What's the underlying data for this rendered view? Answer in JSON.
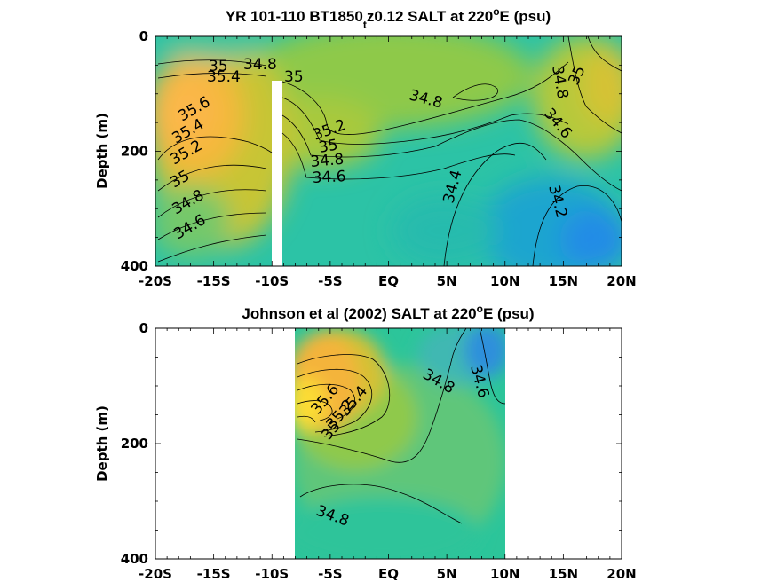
{
  "chart_data": [
    {
      "type": "heatmap",
      "title": {
        "pre": "YR 101-110 BT1850",
        "sub": "t",
        "post": "z0.12 SALT at 220",
        "sup": "o",
        "tail": "E (psu)"
      },
      "ylabel": "Depth (m)",
      "x_ticks": [
        "-20S",
        "-15S",
        "-10S",
        "-5S",
        "EQ",
        "5N",
        "10N",
        "15N",
        "20N"
      ],
      "y_ticks": [
        "0",
        "200",
        "400"
      ],
      "xlim": [
        -20,
        20
      ],
      "ylim": [
        0,
        400
      ],
      "contour_labels": [
        "35",
        "34.8",
        "35.4",
        "35",
        "35.6",
        "35.4",
        "35.2",
        "35",
        "34.8",
        "34.6",
        "35.2",
        "35",
        "34.8",
        "34.6",
        "34.8",
        "34.4",
        "34.8",
        "35",
        "34.6",
        "34.2"
      ]
    },
    {
      "type": "heatmap",
      "title": {
        "pre": "Johnson et al (2002) SALT at 220",
        "sup": "o",
        "tail": "E (psu)"
      },
      "ylabel": "Depth (m)",
      "x_ticks": [
        "-20S",
        "-15S",
        "-10S",
        "-5S",
        "EQ",
        "5N",
        "10N",
        "15N",
        "20N"
      ],
      "y_ticks": [
        "0",
        "200",
        "400"
      ],
      "xlim": [
        -20,
        20
      ],
      "ylim": [
        0,
        400
      ],
      "data_xrange": [
        -8,
        10
      ],
      "contour_labels": [
        "34.8",
        "34.6",
        "35.4",
        "35.2",
        "35",
        "35.6",
        "34.8"
      ]
    }
  ]
}
